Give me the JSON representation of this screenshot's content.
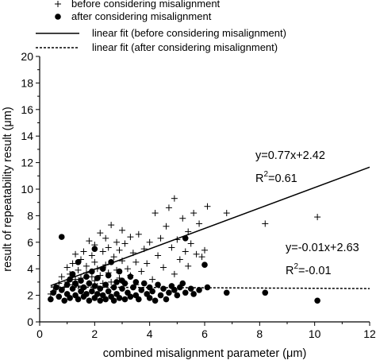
{
  "chart_data": {
    "type": "scatter",
    "xlabel": "combined misalignment parameter (μm)",
    "ylabel": "result of repeatability result (μm)",
    "xlim": [
      0,
      12
    ],
    "ylim": [
      0,
      20
    ],
    "xticks": [
      "0",
      "2",
      "4",
      "6",
      "8",
      "10",
      "12"
    ],
    "yticks": [
      "0",
      "2",
      "4",
      "6",
      "8",
      "10",
      "12",
      "14",
      "16",
      "18",
      "20"
    ],
    "grid": false,
    "legend_position": "top-left",
    "legend": [
      {
        "label": "before considering misalignment",
        "marker": "plus"
      },
      {
        "label": "after considering misalignment",
        "marker": "dot"
      },
      {
        "label": "linear fit (before considering misalignment)",
        "marker": "solid-line"
      },
      {
        "label": "linear fit (after considering misalignment)",
        "marker": "dashed-line"
      }
    ],
    "series": [
      {
        "name": "before considering misalignment",
        "marker": "plus",
        "points": [
          [
            0.4,
            2.1
          ],
          [
            0.5,
            2.3
          ],
          [
            0.6,
            2.5
          ],
          [
            0.7,
            2.9
          ],
          [
            0.8,
            3.4
          ],
          [
            0.9,
            2.6
          ],
          [
            1.0,
            3.0
          ],
          [
            1.0,
            4.1
          ],
          [
            1.1,
            3.6
          ],
          [
            1.2,
            2.8
          ],
          [
            1.2,
            4.4
          ],
          [
            1.3,
            3.2
          ],
          [
            1.3,
            5.1
          ],
          [
            1.4,
            3.9
          ],
          [
            1.4,
            2.7
          ],
          [
            1.5,
            4.7
          ],
          [
            1.5,
            3.3
          ],
          [
            1.6,
            2.5
          ],
          [
            1.6,
            5.3
          ],
          [
            1.7,
            3.7
          ],
          [
            1.7,
            4.2
          ],
          [
            1.8,
            2.9
          ],
          [
            1.8,
            6.1
          ],
          [
            1.9,
            3.4
          ],
          [
            1.9,
            5.0
          ],
          [
            2.0,
            4.5
          ],
          [
            2.0,
            3.1
          ],
          [
            2.0,
            5.8
          ],
          [
            2.1,
            2.7
          ],
          [
            2.1,
            4.0
          ],
          [
            2.2,
            6.7
          ],
          [
            2.2,
            3.5
          ],
          [
            2.3,
            5.3
          ],
          [
            2.3,
            2.9
          ],
          [
            2.4,
            4.3
          ],
          [
            2.4,
            6.3
          ],
          [
            2.5,
            3.7
          ],
          [
            2.5,
            5.6
          ],
          [
            2.6,
            3.0
          ],
          [
            2.6,
            7.3
          ],
          [
            2.7,
            4.9
          ],
          [
            2.7,
            2.6
          ],
          [
            2.8,
            6.0
          ],
          [
            2.8,
            3.9
          ],
          [
            2.9,
            5.4
          ],
          [
            2.9,
            3.3
          ],
          [
            3.0,
            4.6
          ],
          [
            3.0,
            6.9
          ],
          [
            3.1,
            2.9
          ],
          [
            3.1,
            5.9
          ],
          [
            3.2,
            4.0
          ],
          [
            3.3,
            6.4
          ],
          [
            3.3,
            3.5
          ],
          [
            3.4,
            5.2
          ],
          [
            3.5,
            2.8
          ],
          [
            3.5,
            4.5
          ],
          [
            3.6,
            6.6
          ],
          [
            3.7,
            3.8
          ],
          [
            3.8,
            5.5
          ],
          [
            3.9,
            4.4
          ],
          [
            4.0,
            6.0
          ],
          [
            4.1,
            3.2
          ],
          [
            4.2,
            8.2
          ],
          [
            4.3,
            5.0
          ],
          [
            4.4,
            6.3
          ],
          [
            4.5,
            4.1
          ],
          [
            4.6,
            7.2
          ],
          [
            4.7,
            8.6
          ],
          [
            4.8,
            5.6
          ],
          [
            4.9,
            9.3
          ],
          [
            4.9,
            3.6
          ],
          [
            5.0,
            6.2
          ],
          [
            5.1,
            4.7
          ],
          [
            5.2,
            7.8
          ],
          [
            5.3,
            5.3
          ],
          [
            5.4,
            6.8
          ],
          [
            5.4,
            4.2
          ],
          [
            5.5,
            5.9
          ],
          [
            5.6,
            8.2
          ],
          [
            5.7,
            5.1
          ],
          [
            5.8,
            7.4
          ],
          [
            5.9,
            4.9
          ],
          [
            6.0,
            5.4
          ],
          [
            6.1,
            8.7
          ],
          [
            6.8,
            8.2
          ],
          [
            8.2,
            7.4
          ],
          [
            10.1,
            7.9
          ]
        ]
      },
      {
        "name": "after considering misalignment",
        "marker": "dot",
        "points": [
          [
            0.4,
            1.7
          ],
          [
            0.5,
            2.2
          ],
          [
            0.6,
            2.6
          ],
          [
            0.7,
            1.9
          ],
          [
            0.8,
            6.4
          ],
          [
            0.8,
            2.4
          ],
          [
            0.9,
            1.6
          ],
          [
            1.0,
            2.8
          ],
          [
            1.0,
            2.1
          ],
          [
            1.1,
            3.2
          ],
          [
            1.1,
            1.8
          ],
          [
            1.2,
            2.5
          ],
          [
            1.2,
            3.6
          ],
          [
            1.3,
            2.0
          ],
          [
            1.3,
            2.9
          ],
          [
            1.4,
            1.7
          ],
          [
            1.4,
            4.5
          ],
          [
            1.5,
            2.3
          ],
          [
            1.5,
            3.1
          ],
          [
            1.6,
            1.9
          ],
          [
            1.6,
            2.6
          ],
          [
            1.7,
            3.4
          ],
          [
            1.7,
            2.1
          ],
          [
            1.8,
            1.6
          ],
          [
            1.8,
            2.9
          ],
          [
            1.9,
            3.8
          ],
          [
            1.9,
            2.3
          ],
          [
            2.0,
            1.8
          ],
          [
            2.0,
            2.7
          ],
          [
            2.0,
            5.5
          ],
          [
            2.1,
            2.1
          ],
          [
            2.1,
            3.3
          ],
          [
            2.2,
            1.6
          ],
          [
            2.2,
            2.5
          ],
          [
            2.3,
            4.0
          ],
          [
            2.3,
            2.0
          ],
          [
            2.4,
            2.8
          ],
          [
            2.4,
            1.7
          ],
          [
            2.5,
            3.5
          ],
          [
            2.5,
            2.3
          ],
          [
            2.6,
            1.9
          ],
          [
            2.6,
            4.5
          ],
          [
            2.7,
            2.6
          ],
          [
            2.7,
            1.6
          ],
          [
            2.8,
            3.0
          ],
          [
            2.8,
            2.1
          ],
          [
            2.9,
            3.8
          ],
          [
            2.9,
            1.8
          ],
          [
            3.0,
            2.5
          ],
          [
            3.0,
            3.1
          ],
          [
            3.1,
            1.7
          ],
          [
            3.1,
            2.9
          ],
          [
            3.2,
            2.2
          ],
          [
            3.3,
            3.4
          ],
          [
            3.3,
            1.9
          ],
          [
            3.4,
            2.6
          ],
          [
            3.5,
            2.0
          ],
          [
            3.5,
            3.0
          ],
          [
            3.6,
            1.7
          ],
          [
            3.7,
            2.4
          ],
          [
            3.8,
            2.9
          ],
          [
            3.9,
            2.1
          ],
          [
            4.0,
            1.8
          ],
          [
            4.0,
            2.6
          ],
          [
            4.1,
            2.3
          ],
          [
            4.2,
            1.6
          ],
          [
            4.3,
            2.8
          ],
          [
            4.4,
            2.0
          ],
          [
            4.5,
            2.5
          ],
          [
            4.6,
            1.7
          ],
          [
            4.7,
            2.2
          ],
          [
            4.8,
            2.7
          ],
          [
            4.9,
            2.4
          ],
          [
            5.0,
            2.0
          ],
          [
            5.1,
            2.6
          ],
          [
            5.2,
            2.9
          ],
          [
            5.3,
            2.2
          ],
          [
            5.3,
            6.3
          ],
          [
            5.5,
            2.5
          ],
          [
            5.6,
            2.1
          ],
          [
            5.8,
            2.4
          ],
          [
            6.0,
            4.3
          ],
          [
            6.1,
            2.6
          ],
          [
            6.8,
            2.2
          ],
          [
            8.2,
            2.2
          ],
          [
            10.1,
            1.6
          ]
        ]
      }
    ],
    "fits": [
      {
        "name": "linear fit (before considering misalignment)",
        "style": "solid",
        "slope": 0.77,
        "intercept": 2.42,
        "x_range": [
          0.4,
          12
        ]
      },
      {
        "name": "linear fit (after considering misalignment)",
        "style": "dashed",
        "slope": -0.01,
        "intercept": 2.63,
        "x_range": [
          0.4,
          12
        ]
      }
    ],
    "annotations": {
      "before_equation": "y=0.77x+2.42",
      "before_r2_prefix": "R",
      "before_r2_sup": "2",
      "before_r2_value": "=0.61",
      "after_equation": "y=-0.01x+2.63",
      "after_r2_prefix": "R",
      "after_r2_sup": "2",
      "after_r2_value": "=-0.01"
    }
  }
}
